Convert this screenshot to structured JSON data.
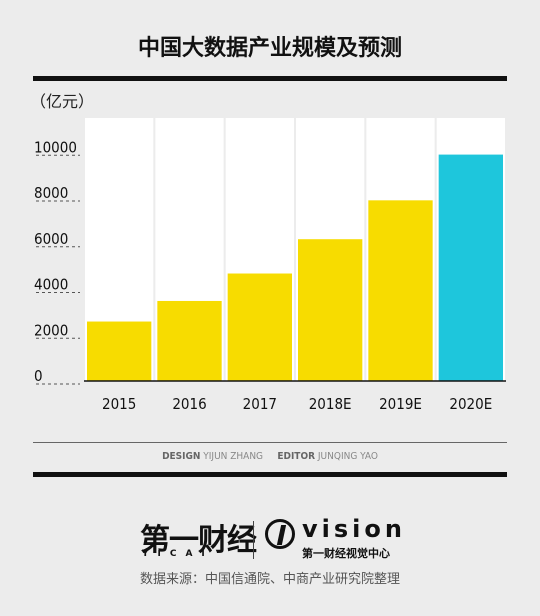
{
  "title": "中国大数据产业规模及预测",
  "unit_label": "（亿元）",
  "credits": {
    "design_key": "DESIGN",
    "design_name": "YIJUN ZHANG",
    "editor_key": "EDITOR",
    "editor_name": "JUNQING YAO"
  },
  "logos": {
    "brand_cn": "第一财经",
    "brand_pinyin": "YICAI",
    "brand_vision": "vision",
    "brand_vision_sub": "第一财经视觉中心"
  },
  "source": "数据来源：中国信通院、中商产业研究院整理",
  "colors": {
    "bar": "#f7dc00",
    "bar_highlight": "#1ec6dc",
    "background": "#ececec",
    "plot_background": "#ffffff"
  },
  "chart_data": {
    "type": "bar",
    "title": "中国大数据产业规模及预测",
    "ylabel": "（亿元）",
    "xlabel": "",
    "categories": [
      "2015",
      "2016",
      "2017",
      "2018E",
      "2019E",
      "2020E"
    ],
    "values": [
      2600,
      3500,
      4700,
      6200,
      7900,
      9900
    ],
    "highlight_index": 5,
    "yticks": [
      0,
      2000,
      4000,
      6000,
      8000,
      10000
    ],
    "ylim": [
      0,
      11500
    ],
    "grid": false,
    "legend": "none"
  }
}
